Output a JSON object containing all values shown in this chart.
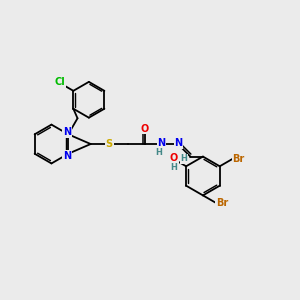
{
  "background_color": "#ebebeb",
  "figsize": [
    3.0,
    3.0
  ],
  "dpi": 100,
  "atom_colors": {
    "N": "#0000ee",
    "O": "#ee0000",
    "S": "#ccaa00",
    "Cl": "#00bb00",
    "Br": "#bb6600",
    "C": "#000000",
    "H": "#448888"
  },
  "bond_color": "#000000",
  "bond_width": 1.3
}
